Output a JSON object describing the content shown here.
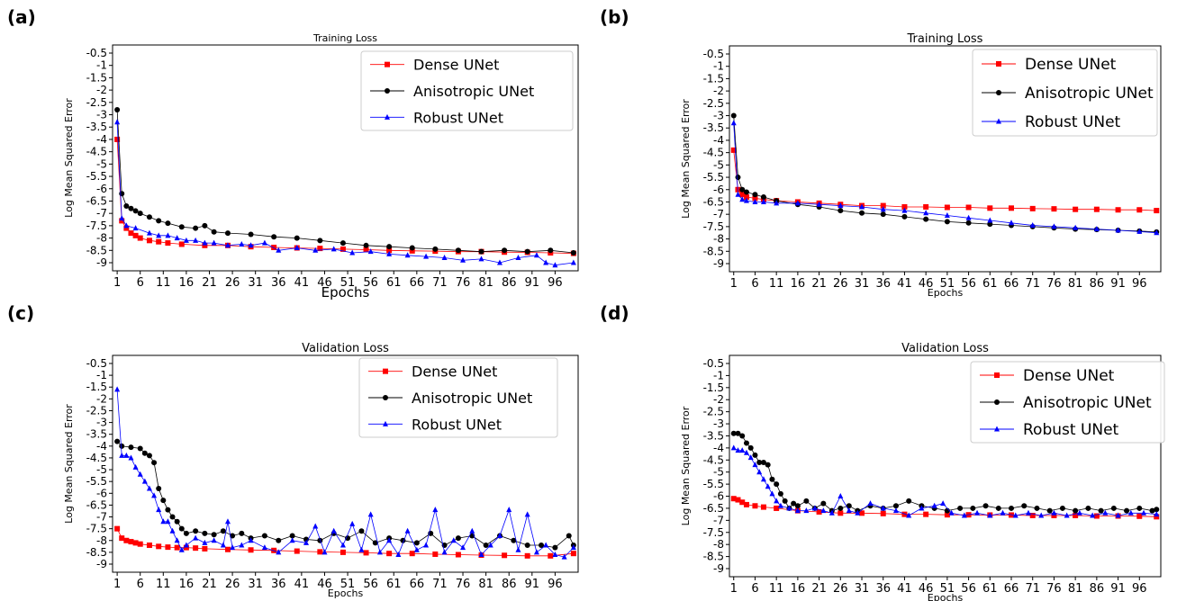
{
  "chart_data": [
    {
      "panel_label": "(a)",
      "type": "line",
      "title": "Training Loss",
      "xlabel": "Epochs",
      "ylabel": "Log Mean Squared Error",
      "ylim": [
        -9.0,
        -0.5
      ],
      "yticks": [
        -0.5,
        -1.0,
        -1.5,
        -2.0,
        -2.5,
        -3.0,
        -3.5,
        -4.0,
        -4.5,
        -5.0,
        -5.5,
        -6.0,
        -6.5,
        -7.0,
        -7.5,
        -8.0,
        -8.5,
        -9.0
      ],
      "xticks": [
        1,
        6,
        11,
        16,
        21,
        26,
        31,
        36,
        41,
        46,
        51,
        56,
        61,
        66,
        71,
        76,
        81,
        86,
        91,
        96
      ],
      "legend": "top-right",
      "series": [
        {
          "name": "Dense UNet",
          "color": "#ff0000",
          "marker": "square",
          "x": [
            1,
            2,
            3,
            4,
            5,
            6,
            8,
            10,
            12,
            15,
            20,
            25,
            30,
            35,
            40,
            45,
            50,
            55,
            60,
            65,
            70,
            75,
            80,
            85,
            90,
            95,
            100
          ],
          "y": [
            -4.0,
            -7.3,
            -7.6,
            -7.8,
            -7.9,
            -8.0,
            -8.1,
            -8.15,
            -8.2,
            -8.25,
            -8.3,
            -8.3,
            -8.35,
            -8.38,
            -8.4,
            -8.42,
            -8.45,
            -8.47,
            -8.5,
            -8.52,
            -8.53,
            -8.55,
            -8.55,
            -8.57,
            -8.58,
            -8.6,
            -8.62
          ]
        },
        {
          "name": "Anisotropic UNet",
          "color": "#000000",
          "marker": "circle",
          "x": [
            1,
            2,
            3,
            4,
            5,
            6,
            8,
            10,
            12,
            15,
            18,
            20,
            22,
            25,
            30,
            35,
            40,
            45,
            50,
            55,
            60,
            65,
            70,
            75,
            80,
            85,
            90,
            95,
            100
          ],
          "y": [
            -2.8,
            -6.2,
            -6.7,
            -6.8,
            -6.9,
            -7.0,
            -7.15,
            -7.3,
            -7.4,
            -7.55,
            -7.6,
            -7.5,
            -7.75,
            -7.8,
            -7.85,
            -7.95,
            -8.0,
            -8.1,
            -8.2,
            -8.3,
            -8.35,
            -8.4,
            -8.45,
            -8.5,
            -8.55,
            -8.5,
            -8.55,
            -8.5,
            -8.6
          ]
        },
        {
          "name": "Robust UNet",
          "color": "#0000ff",
          "marker": "triangle",
          "x": [
            1,
            2,
            3,
            5,
            8,
            10,
            12,
            14,
            16,
            18,
            20,
            22,
            25,
            28,
            30,
            33,
            36,
            40,
            44,
            48,
            52,
            56,
            60,
            64,
            68,
            72,
            76,
            80,
            84,
            88,
            92,
            94,
            96,
            100
          ],
          "y": [
            -3.3,
            -7.2,
            -7.5,
            -7.6,
            -7.8,
            -7.9,
            -7.9,
            -8.0,
            -8.1,
            -8.1,
            -8.2,
            -8.2,
            -8.3,
            -8.25,
            -8.3,
            -8.2,
            -8.5,
            -8.4,
            -8.5,
            -8.45,
            -8.6,
            -8.55,
            -8.65,
            -8.7,
            -8.75,
            -8.8,
            -8.9,
            -8.85,
            -9.0,
            -8.8,
            -8.7,
            -9.0,
            -9.1,
            -9.0
          ]
        }
      ]
    },
    {
      "panel_label": "(b)",
      "type": "line",
      "title": "Training Loss",
      "xlabel": "Epochs",
      "ylabel": "Log Mean Squared Error",
      "ylim": [
        -9.0,
        -0.5
      ],
      "yticks": [
        -0.5,
        -1.0,
        -1.5,
        -2.0,
        -2.5,
        -3.0,
        -3.5,
        -4.0,
        -4.5,
        -5.0,
        -5.5,
        -6.0,
        -6.5,
        -7.0,
        -7.5,
        -8.0,
        -8.5,
        -9.0
      ],
      "xticks": [
        1,
        6,
        11,
        16,
        21,
        26,
        31,
        36,
        41,
        46,
        51,
        56,
        61,
        66,
        71,
        76,
        81,
        86,
        91,
        96
      ],
      "legend": "top-right",
      "series": [
        {
          "name": "Dense UNet",
          "color": "#ff0000",
          "marker": "square",
          "x": [
            1,
            2,
            3,
            4,
            6,
            8,
            11,
            16,
            21,
            26,
            31,
            36,
            41,
            46,
            51,
            56,
            61,
            66,
            71,
            76,
            81,
            86,
            91,
            96,
            100
          ],
          "y": [
            -4.4,
            -6.0,
            -6.2,
            -6.3,
            -6.35,
            -6.4,
            -6.45,
            -6.5,
            -6.55,
            -6.6,
            -6.65,
            -6.65,
            -6.7,
            -6.7,
            -6.72,
            -6.72,
            -6.75,
            -6.75,
            -6.77,
            -6.78,
            -6.8,
            -6.8,
            -6.82,
            -6.82,
            -6.85
          ]
        },
        {
          "name": "Anisotropic UNet",
          "color": "#000000",
          "marker": "circle",
          "x": [
            1,
            2,
            3,
            4,
            6,
            8,
            11,
            16,
            21,
            26,
            31,
            36,
            41,
            46,
            51,
            56,
            61,
            66,
            71,
            76,
            81,
            86,
            91,
            96,
            100
          ],
          "y": [
            -3.0,
            -5.5,
            -6.0,
            -6.1,
            -6.2,
            -6.3,
            -6.45,
            -6.6,
            -6.7,
            -6.85,
            -6.95,
            -7.0,
            -7.1,
            -7.2,
            -7.3,
            -7.35,
            -7.4,
            -7.45,
            -7.5,
            -7.55,
            -7.6,
            -7.62,
            -7.65,
            -7.68,
            -7.72
          ]
        },
        {
          "name": "Robust UNet",
          "color": "#0000ff",
          "marker": "triangle",
          "x": [
            1,
            2,
            3,
            4,
            6,
            8,
            11,
            16,
            21,
            26,
            31,
            36,
            41,
            46,
            51,
            56,
            61,
            66,
            71,
            76,
            81,
            86,
            91,
            96,
            100
          ],
          "y": [
            -3.3,
            -6.2,
            -6.4,
            -6.45,
            -6.5,
            -6.5,
            -6.55,
            -6.55,
            -6.6,
            -6.65,
            -6.7,
            -6.8,
            -6.85,
            -6.95,
            -7.05,
            -7.15,
            -7.25,
            -7.35,
            -7.45,
            -7.5,
            -7.55,
            -7.6,
            -7.65,
            -7.7,
            -7.75
          ]
        }
      ]
    },
    {
      "panel_label": "(c)",
      "type": "line",
      "title": "Validation Loss",
      "xlabel": "Epochs",
      "ylabel": "Log Mean Squared Error",
      "ylim": [
        -9.0,
        -0.5
      ],
      "yticks": [
        -0.5,
        -1.0,
        -1.5,
        -2.0,
        -2.5,
        -3.0,
        -3.5,
        -4.0,
        -4.5,
        -5.0,
        -5.5,
        -6.0,
        -6.5,
        -7.0,
        -7.5,
        -8.0,
        -8.5,
        -9.0
      ],
      "xticks": [
        1,
        6,
        11,
        16,
        21,
        26,
        31,
        36,
        41,
        46,
        51,
        56,
        61,
        66,
        71,
        76,
        81,
        86,
        91,
        96
      ],
      "legend": "top-right",
      "series": [
        {
          "name": "Dense UNet",
          "color": "#ff0000",
          "marker": "square",
          "x": [
            1,
            2,
            3,
            4,
            5,
            6,
            8,
            10,
            12,
            14,
            16,
            18,
            20,
            25,
            30,
            35,
            40,
            45,
            50,
            55,
            60,
            65,
            70,
            75,
            80,
            85,
            90,
            95,
            100
          ],
          "y": [
            -7.5,
            -7.9,
            -8.0,
            -8.05,
            -8.1,
            -8.15,
            -8.2,
            -8.25,
            -8.28,
            -8.3,
            -8.3,
            -8.32,
            -8.35,
            -8.38,
            -8.4,
            -8.42,
            -8.45,
            -8.48,
            -8.5,
            -8.52,
            -8.55,
            -8.55,
            -8.58,
            -8.6,
            -8.62,
            -8.63,
            -8.65,
            -8.65,
            -8.55
          ]
        },
        {
          "name": "Anisotropic UNet",
          "color": "#000000",
          "marker": "circle",
          "x": [
            1,
            2,
            4,
            6,
            7,
            8,
            9,
            10,
            11,
            12,
            13,
            14,
            15,
            16,
            18,
            20,
            22,
            24,
            26,
            28,
            30,
            33,
            36,
            39,
            42,
            45,
            48,
            51,
            54,
            57,
            60,
            63,
            66,
            69,
            72,
            75,
            78,
            81,
            84,
            87,
            90,
            93,
            96,
            99,
            100
          ],
          "y": [
            -3.8,
            -4.0,
            -4.05,
            -4.1,
            -4.3,
            -4.4,
            -4.7,
            -5.8,
            -6.3,
            -6.7,
            -7.0,
            -7.2,
            -7.5,
            -7.7,
            -7.6,
            -7.7,
            -7.75,
            -7.6,
            -7.8,
            -7.7,
            -7.9,
            -7.8,
            -8.0,
            -7.8,
            -7.95,
            -8.0,
            -7.7,
            -7.9,
            -7.6,
            -8.1,
            -7.9,
            -8.0,
            -8.1,
            -7.7,
            -8.2,
            -7.9,
            -7.8,
            -8.2,
            -7.8,
            -8.0,
            -8.2,
            -8.2,
            -8.3,
            -7.8,
            -8.2
          ]
        },
        {
          "name": "Robust UNet",
          "color": "#0000ff",
          "marker": "triangle",
          "x": [
            1,
            2,
            3,
            4,
            5,
            6,
            7,
            8,
            9,
            10,
            11,
            12,
            13,
            14,
            15,
            16,
            18,
            20,
            22,
            24,
            25,
            26,
            28,
            30,
            33,
            36,
            39,
            42,
            44,
            46,
            48,
            50,
            52,
            54,
            56,
            58,
            60,
            62,
            64,
            66,
            68,
            70,
            72,
            74,
            76,
            78,
            80,
            82,
            84,
            86,
            88,
            90,
            92,
            94,
            96,
            98,
            100
          ],
          "y": [
            -1.6,
            -4.4,
            -4.4,
            -4.5,
            -4.9,
            -5.2,
            -5.5,
            -5.8,
            -6.1,
            -6.7,
            -7.2,
            -7.2,
            -7.6,
            -8.0,
            -8.4,
            -8.2,
            -7.9,
            -8.1,
            -8.0,
            -8.2,
            -7.2,
            -8.3,
            -8.2,
            -8.0,
            -8.3,
            -8.5,
            -8.0,
            -8.1,
            -7.4,
            -8.5,
            -7.6,
            -8.2,
            -7.3,
            -8.4,
            -6.9,
            -8.5,
            -8.0,
            -8.6,
            -7.6,
            -8.4,
            -8.2,
            -6.7,
            -8.5,
            -8.0,
            -8.3,
            -7.6,
            -8.6,
            -8.2,
            -7.8,
            -6.7,
            -8.4,
            -6.9,
            -8.5,
            -8.2,
            -8.6,
            -8.7,
            -8.3
          ]
        }
      ]
    },
    {
      "panel_label": "(d)",
      "type": "line",
      "title": "Validation Loss",
      "xlabel": "Epochs",
      "ylabel": "Log Mean Squared Error",
      "ylim": [
        -9.0,
        -0.5
      ],
      "yticks": [
        -0.5,
        -1.0,
        -1.5,
        -2.0,
        -2.5,
        -3.0,
        -3.5,
        -4.0,
        -4.5,
        -5.0,
        -5.5,
        -6.0,
        -6.5,
        -7.0,
        -7.5,
        -8.0,
        -8.5,
        -9.0
      ],
      "xticks": [
        1,
        6,
        11,
        16,
        21,
        26,
        31,
        36,
        41,
        46,
        51,
        56,
        61,
        66,
        71,
        76,
        81,
        86,
        91,
        96
      ],
      "legend": "top-right",
      "series": [
        {
          "name": "Dense UNet",
          "color": "#ff0000",
          "marker": "square",
          "x": [
            1,
            2,
            3,
            4,
            6,
            8,
            11,
            16,
            21,
            26,
            31,
            36,
            41,
            46,
            51,
            56,
            61,
            66,
            71,
            76,
            81,
            86,
            91,
            96,
            100
          ],
          "y": [
            -6.1,
            -6.15,
            -6.25,
            -6.35,
            -6.4,
            -6.45,
            -6.5,
            -6.6,
            -6.65,
            -6.7,
            -6.7,
            -6.72,
            -6.75,
            -6.75,
            -6.77,
            -6.77,
            -6.78,
            -6.78,
            -6.8,
            -6.8,
            -6.8,
            -6.82,
            -6.82,
            -6.83,
            -6.85
          ]
        },
        {
          "name": "Anisotropic UNet",
          "color": "#000000",
          "marker": "circle",
          "x": [
            1,
            2,
            3,
            4,
            5,
            6,
            7,
            8,
            9,
            10,
            11,
            12,
            13,
            14,
            15,
            16,
            18,
            20,
            22,
            24,
            26,
            28,
            30,
            33,
            36,
            39,
            42,
            45,
            48,
            51,
            54,
            57,
            60,
            63,
            66,
            69,
            72,
            75,
            78,
            81,
            84,
            87,
            90,
            93,
            96,
            99,
            100
          ],
          "y": [
            -3.4,
            -3.4,
            -3.5,
            -3.8,
            -4.0,
            -4.3,
            -4.6,
            -4.6,
            -4.7,
            -5.3,
            -5.5,
            -5.9,
            -6.2,
            -6.5,
            -6.3,
            -6.4,
            -6.2,
            -6.5,
            -6.3,
            -6.6,
            -6.5,
            -6.4,
            -6.6,
            -6.4,
            -6.5,
            -6.4,
            -6.2,
            -6.4,
            -6.5,
            -6.6,
            -6.5,
            -6.5,
            -6.4,
            -6.5,
            -6.5,
            -6.4,
            -6.5,
            -6.6,
            -6.5,
            -6.6,
            -6.5,
            -6.6,
            -6.5,
            -6.6,
            -6.5,
            -6.6,
            -6.55
          ]
        },
        {
          "name": "Robust UNet",
          "color": "#0000ff",
          "marker": "triangle",
          "x": [
            1,
            2,
            3,
            4,
            5,
            6,
            7,
            8,
            9,
            10,
            11,
            12,
            14,
            16,
            18,
            20,
            22,
            24,
            26,
            28,
            30,
            33,
            36,
            39,
            42,
            45,
            48,
            50,
            52,
            55,
            58,
            61,
            64,
            67,
            70,
            73,
            76,
            79,
            82,
            85,
            88,
            91,
            94,
            97,
            100
          ],
          "y": [
            -4.0,
            -4.1,
            -4.1,
            -4.2,
            -4.4,
            -4.7,
            -5.0,
            -5.3,
            -5.6,
            -5.9,
            -6.2,
            -6.4,
            -6.5,
            -6.6,
            -6.6,
            -6.5,
            -6.6,
            -6.7,
            -6.0,
            -6.6,
            -6.7,
            -6.3,
            -6.5,
            -6.6,
            -6.8,
            -6.5,
            -6.4,
            -6.3,
            -6.7,
            -6.8,
            -6.7,
            -6.8,
            -6.7,
            -6.8,
            -6.7,
            -6.8,
            -6.7,
            -6.8,
            -6.7,
            -6.8,
            -6.7,
            -6.8,
            -6.7,
            -6.7,
            -6.75
          ]
        }
      ]
    }
  ]
}
